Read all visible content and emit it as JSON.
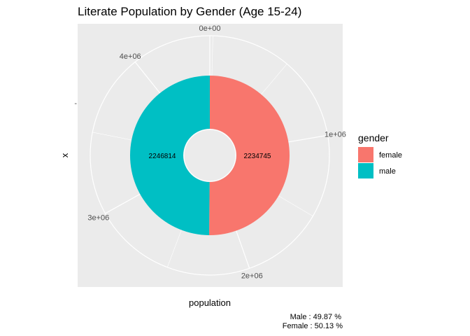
{
  "chart_data": {
    "type": "pie",
    "title": "Literate Population by Gender (Age 15-24)",
    "xlabel": "population",
    "ylabel": "x",
    "y_tick_label": "-",
    "theta_ticks": [
      {
        "value": 0,
        "label": "0e+00"
      },
      {
        "value": 1000000,
        "label": "1e+06"
      },
      {
        "value": 2000000,
        "label": "2e+06"
      },
      {
        "value": 3000000,
        "label": "3e+06"
      },
      {
        "value": 4000000,
        "label": "4e+06"
      }
    ],
    "categories": [
      "female",
      "male"
    ],
    "values": [
      2246814,
      2234745
    ],
    "data_labels": [
      "2246814",
      "2234745"
    ],
    "colors": [
      "#F8766D",
      "#00BFC4"
    ],
    "legend": {
      "title": "gender",
      "position": "right"
    },
    "caption_lines": [
      "Male : 49.87 %",
      "Female : 50.13 %"
    ],
    "panel_color": "#EBEBEB",
    "grid_color": "#FFFFFF",
    "grid": true
  }
}
